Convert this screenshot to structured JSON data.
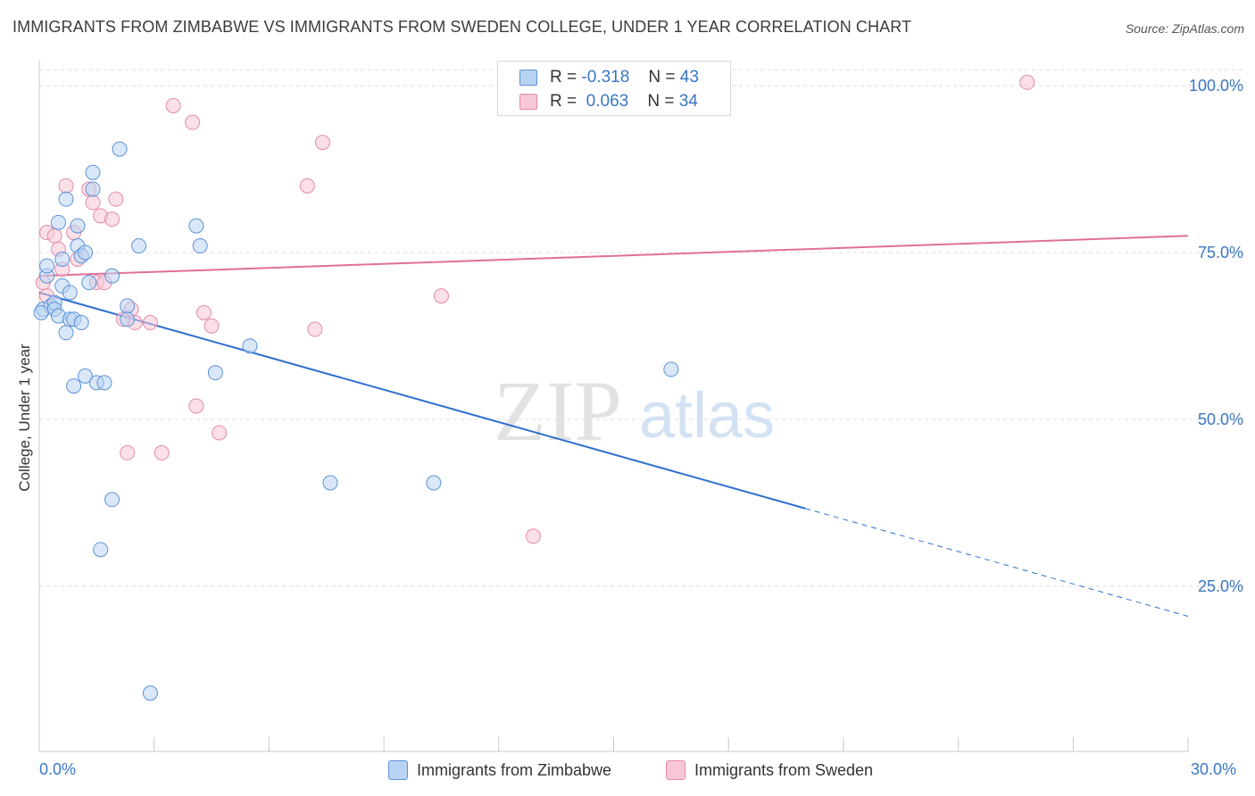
{
  "title": "IMMIGRANTS FROM ZIMBABWE VS IMMIGRANTS FROM SWEDEN COLLEGE, UNDER 1 YEAR CORRELATION CHART",
  "source": "Source: ZipAtlas.com",
  "watermark": {
    "zip": "ZIP",
    "atlas": "atlas"
  },
  "legend": {
    "r_label": "R =",
    "n_label": "N =",
    "series1": {
      "r": "-0.318",
      "n": "43"
    },
    "series2": {
      "r": "0.063",
      "n": "34"
    }
  },
  "colors": {
    "blue_fill": "#b9d3f2",
    "blue_stroke": "#5b93d8",
    "blue_line": "#2f6fcf",
    "pink_fill": "#f8c7d6",
    "pink_stroke": "#e38aa8",
    "pink_line": "#e07097",
    "axis_label": "#3a75c4"
  },
  "chart_data": {
    "type": "scatter",
    "title": "IMMIGRANTS FROM ZIMBABWE VS IMMIGRANTS FROM SWEDEN COLLEGE, UNDER 1 YEAR CORRELATION CHART",
    "xlabel": "",
    "ylabel": "College, Under 1 year",
    "xlim": [
      0,
      30
    ],
    "ylim": [
      0,
      101
    ],
    "x_tick_labels": [
      "0.0%",
      "30.0%"
    ],
    "y_ticks": [
      25,
      50,
      75,
      100
    ],
    "y_tick_labels": [
      "25.0%",
      "50.0%",
      "75.0%",
      "100.0%"
    ],
    "grid": true,
    "legend_position": "top-center",
    "series": [
      {
        "name": "Immigrants from Zimbabwe",
        "r": -0.318,
        "n": 43,
        "trend": {
          "x0": 0,
          "y0": 69,
          "x1": 30,
          "y1": 20.5,
          "solid_until_x": 20
        },
        "points": [
          [
            0.1,
            66.5
          ],
          [
            0.2,
            71.5
          ],
          [
            0.2,
            73
          ],
          [
            0.3,
            67
          ],
          [
            0.4,
            67.5
          ],
          [
            0.4,
            66.5
          ],
          [
            0.5,
            65.5
          ],
          [
            0.5,
            79.5
          ],
          [
            0.6,
            74
          ],
          [
            0.6,
            70
          ],
          [
            0.7,
            63
          ],
          [
            0.7,
            83
          ],
          [
            0.8,
            65
          ],
          [
            0.8,
            69
          ],
          [
            0.9,
            65
          ],
          [
            0.9,
            55
          ],
          [
            1.0,
            79
          ],
          [
            1.0,
            76
          ],
          [
            1.1,
            64.5
          ],
          [
            1.1,
            74.5
          ],
          [
            1.2,
            75
          ],
          [
            1.2,
            56.5
          ],
          [
            1.3,
            70.5
          ],
          [
            1.4,
            84.5
          ],
          [
            1.4,
            87
          ],
          [
            1.5,
            55.5
          ],
          [
            1.7,
            55.5
          ],
          [
            1.6,
            30.5
          ],
          [
            1.9,
            38
          ],
          [
            1.9,
            71.5
          ],
          [
            2.1,
            90.5
          ],
          [
            2.3,
            67
          ],
          [
            2.3,
            65
          ],
          [
            2.6,
            76
          ],
          [
            2.9,
            9
          ],
          [
            4.1,
            79
          ],
          [
            4.2,
            76
          ],
          [
            4.6,
            57
          ],
          [
            5.5,
            61
          ],
          [
            7.6,
            40.5
          ],
          [
            10.3,
            40.5
          ],
          [
            16.5,
            57.5
          ],
          [
            0.05,
            66
          ]
        ]
      },
      {
        "name": "Immigrants from Sweden",
        "r": 0.063,
        "n": 34,
        "trend": {
          "x0": 0,
          "y0": 71.5,
          "x1": 30,
          "y1": 77.5
        },
        "points": [
          [
            0.1,
            70.5
          ],
          [
            0.2,
            68.5
          ],
          [
            0.2,
            78
          ],
          [
            0.4,
            77.5
          ],
          [
            0.5,
            75.5
          ],
          [
            0.6,
            72.5
          ],
          [
            0.7,
            85
          ],
          [
            0.9,
            78
          ],
          [
            1.0,
            74
          ],
          [
            1.3,
            84.5
          ],
          [
            1.4,
            82.5
          ],
          [
            1.5,
            70.5
          ],
          [
            1.6,
            80.5
          ],
          [
            1.7,
            70.5
          ],
          [
            1.9,
            80
          ],
          [
            2.0,
            83
          ],
          [
            2.2,
            65
          ],
          [
            2.3,
            45
          ],
          [
            2.4,
            66.5
          ],
          [
            2.5,
            64.5
          ],
          [
            2.9,
            64.5
          ],
          [
            3.2,
            45
          ],
          [
            3.5,
            97
          ],
          [
            4.0,
            94.5
          ],
          [
            4.1,
            52
          ],
          [
            4.3,
            66
          ],
          [
            4.5,
            64
          ],
          [
            4.7,
            48
          ],
          [
            7.0,
            85
          ],
          [
            7.2,
            63.5
          ],
          [
            7.4,
            91.5
          ],
          [
            10.5,
            68.5
          ],
          [
            12.9,
            32.5
          ],
          [
            25.8,
            100.5
          ]
        ]
      }
    ]
  }
}
